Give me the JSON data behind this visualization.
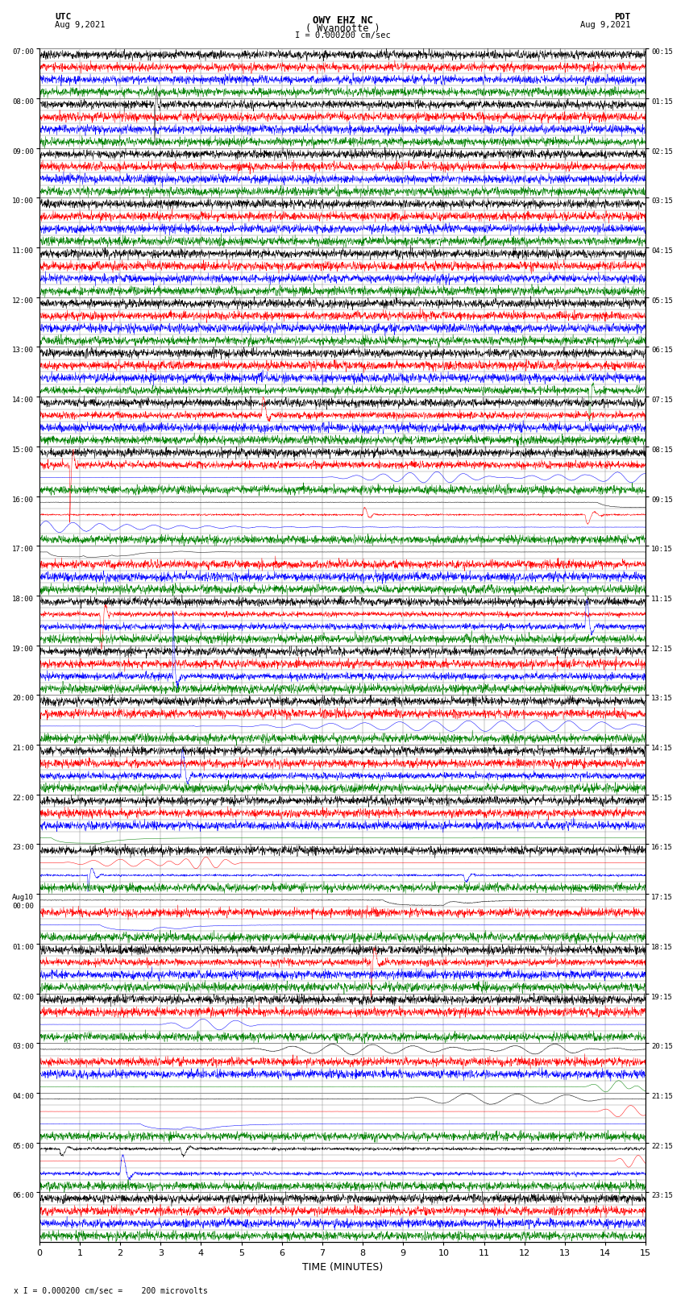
{
  "title_line1": "OWY EHZ NC",
  "title_line2": "( Wyandotte )",
  "scale_label": "I = 0.000200 cm/sec",
  "label_utc": "UTC",
  "label_pdt": "PDT",
  "date_left": "Aug 9,2021",
  "date_right": "Aug 9,2021",
  "xlabel": "TIME (MINUTES)",
  "footer": "x I = 0.000200 cm/sec =    200 microvolts",
  "xlim": [
    0,
    15
  ],
  "xticks": [
    0,
    1,
    2,
    3,
    4,
    5,
    6,
    7,
    8,
    9,
    10,
    11,
    12,
    13,
    14,
    15
  ],
  "bg_color": "#ffffff",
  "grid_color": "#888888",
  "trace_colors": [
    "black",
    "red",
    "blue",
    "green"
  ],
  "traces_per_hour": 4,
  "num_hours": 24,
  "left_times_full": [
    "07:00",
    "08:00",
    "09:00",
    "10:00",
    "11:00",
    "12:00",
    "13:00",
    "14:00",
    "15:00",
    "16:00",
    "17:00",
    "18:00",
    "19:00",
    "20:00",
    "21:00",
    "22:00",
    "23:00",
    "Aug10\n00:00",
    "01:00",
    "02:00",
    "03:00",
    "04:00",
    "05:00",
    "06:00"
  ],
  "right_times_full": [
    "00:15",
    "01:15",
    "02:15",
    "03:15",
    "04:15",
    "05:15",
    "06:15",
    "07:15",
    "08:15",
    "09:15",
    "10:15",
    "11:15",
    "12:15",
    "13:15",
    "14:15",
    "15:15",
    "16:15",
    "17:15",
    "18:15",
    "19:15",
    "20:15",
    "21:15",
    "22:15",
    "23:15"
  ],
  "total_hours": 24
}
